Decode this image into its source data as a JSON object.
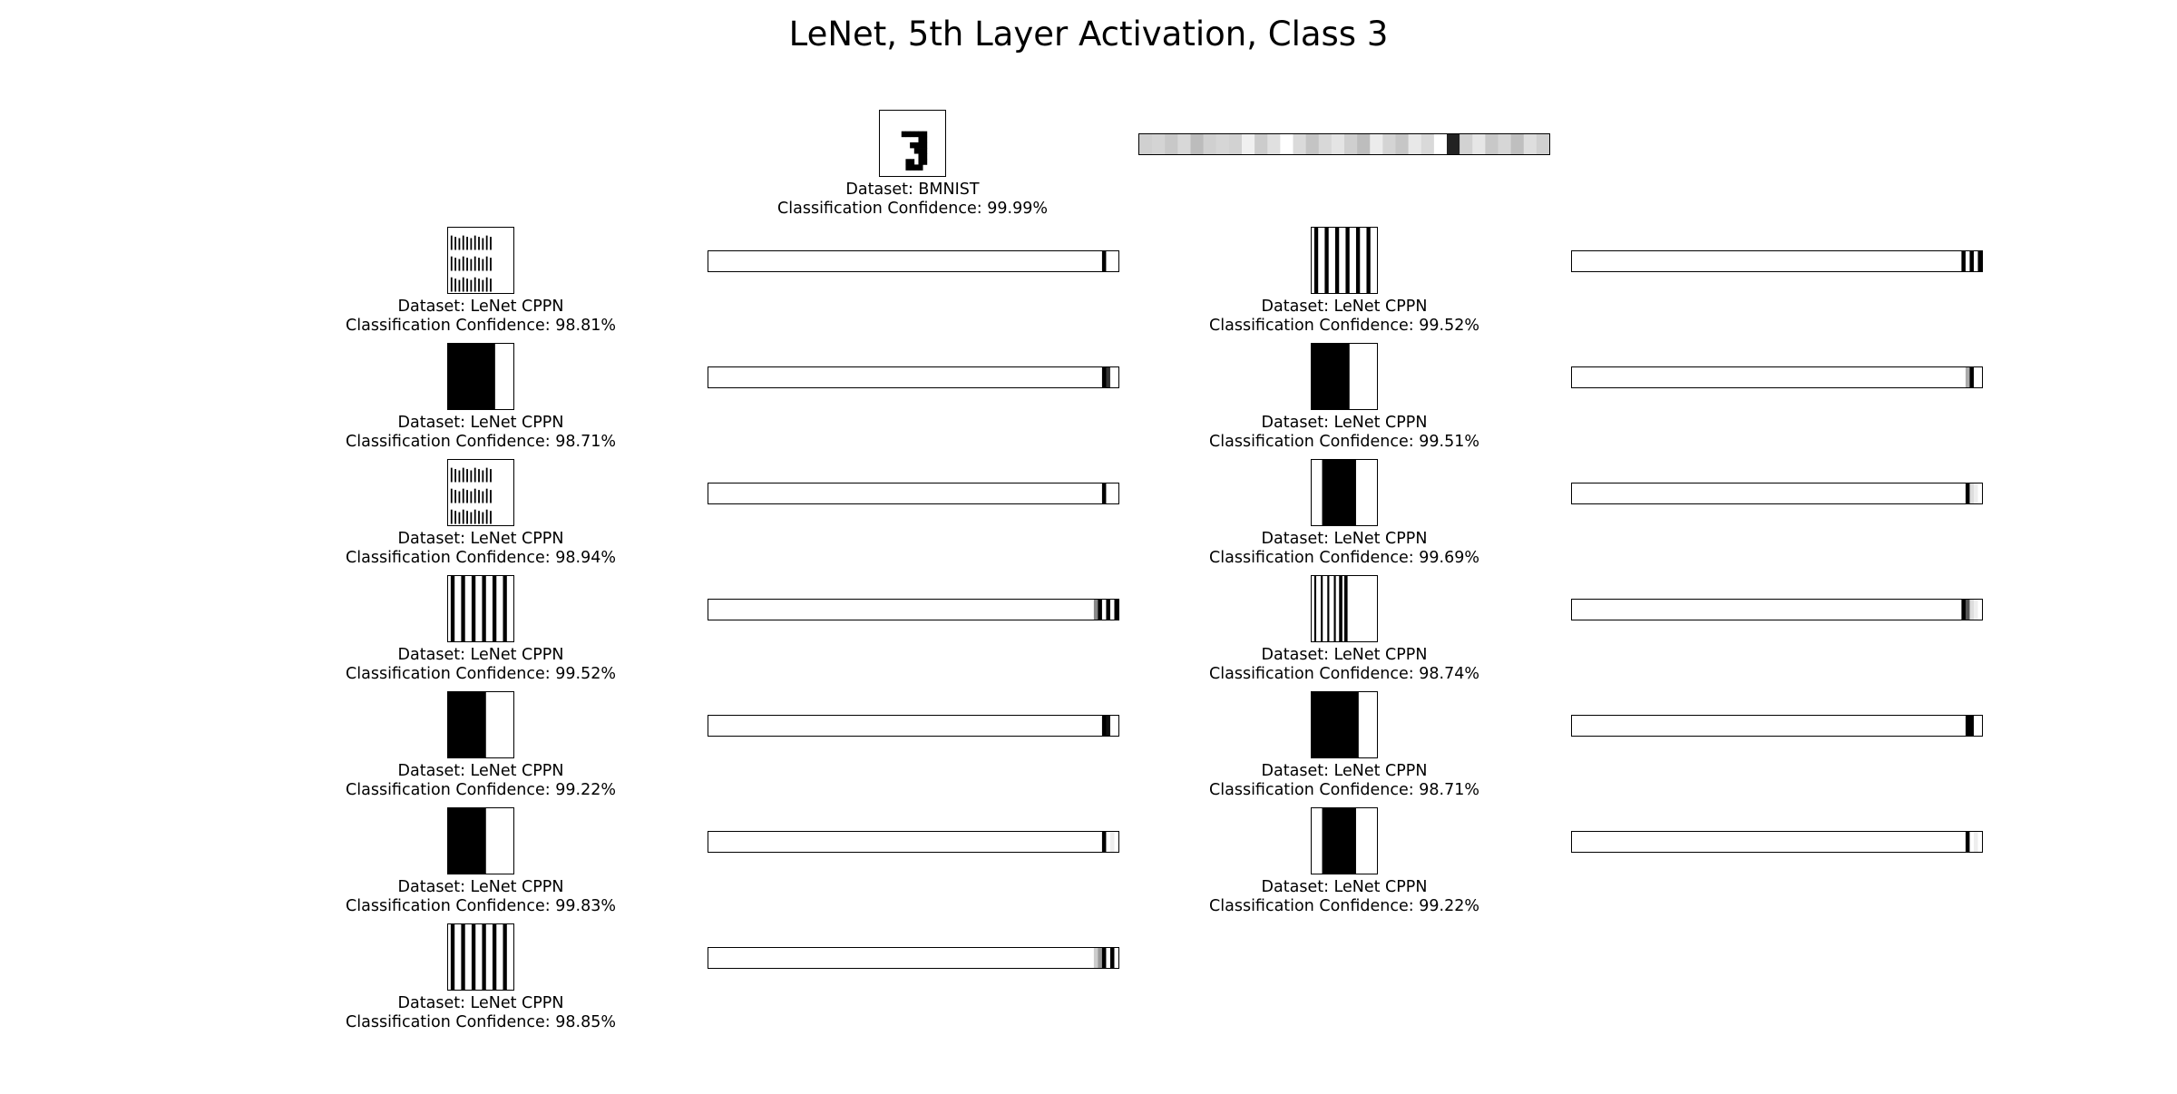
{
  "title": "LeNet, 5th Layer Activation, Class 3",
  "reference": {
    "dataset_label": "Dataset: BMNIST",
    "confidence_label": "Classification Confidence: 99.99%",
    "pattern": "digit-three",
    "activation": [
      "#d0d0d0",
      "#d4d4d4",
      "#c8c8c8",
      "#d8d8d8",
      "#bcbcbc",
      "#d0d0d0",
      "#d6d6d6",
      "#d2d2d2",
      "#f0f0f0",
      "#cccccc",
      "#e0e0e0",
      "#ffffff",
      "#dadada",
      "#c4c4c4",
      "#d8d8d8",
      "#e4e4e4",
      "#cfcfcf",
      "#bdbdbd",
      "#ececec",
      "#d4d4d4",
      "#c6c6c6",
      "#e8e8e8",
      "#d9d9d9",
      "#ffffff",
      "#222222",
      "#d2d2d2",
      "#e6e6e6",
      "#c8c8c8",
      "#d6d6d6",
      "#bfbfbf",
      "#dedede",
      "#d0d0d0"
    ]
  },
  "left_column": [
    {
      "dataset_label": "Dataset: LeNet CPPN",
      "confidence_label": "Classification Confidence: 98.81%",
      "pattern": "dashed-stripes",
      "activation_tail": [
        "#000000",
        "#ffffff",
        "#ffffff",
        "#ffffff"
      ]
    },
    {
      "dataset_label": "Dataset: LeNet CPPN",
      "confidence_label": "Classification Confidence: 98.71%",
      "pattern": "solid-block-wide",
      "activation_tail": [
        "#000000",
        "#333333",
        "#ffffff",
        "#ffffff"
      ]
    },
    {
      "dataset_label": "Dataset: LeNet CPPN",
      "confidence_label": "Classification Confidence: 98.94%",
      "pattern": "dashed-stripes",
      "activation_tail": [
        "#000000",
        "#ffffff",
        "#ffffff",
        "#ffffff"
      ]
    },
    {
      "dataset_label": "Dataset: LeNet CPPN",
      "confidence_label": "Classification Confidence: 99.52%",
      "pattern": "vertical-stripes",
      "activation_tail": [
        "#888888",
        "#000000",
        "#ffffff",
        "#000000",
        "#ffffff",
        "#000000"
      ]
    },
    {
      "dataset_label": "Dataset: LeNet CPPN",
      "confidence_label": "Classification Confidence: 99.22%",
      "pattern": "solid-block-mid",
      "activation_tail": [
        "#000000",
        "#111111",
        "#ffffff",
        "#ffffff"
      ]
    },
    {
      "dataset_label": "Dataset: LeNet CPPN",
      "confidence_label": "Classification Confidence: 99.83%",
      "pattern": "solid-block-mid",
      "activation_tail": [
        "#000000",
        "#ffffff",
        "#eeeeee",
        "#ffffff"
      ]
    },
    {
      "dataset_label": "Dataset: LeNet CPPN",
      "confidence_label": "Classification Confidence: 98.85%",
      "pattern": "vertical-stripes",
      "activation_tail": [
        "#cccccc",
        "#999999",
        "#000000",
        "#ffffff",
        "#000000",
        "#ffffff"
      ]
    }
  ],
  "right_column": [
    {
      "dataset_label": "Dataset: LeNet CPPN",
      "confidence_label": "Classification Confidence: 99.52%",
      "pattern": "vertical-stripes",
      "activation_tail": [
        "#000000",
        "#ffffff",
        "#000000",
        "#ffffff",
        "#000000"
      ]
    },
    {
      "dataset_label": "Dataset: LeNet CPPN",
      "confidence_label": "Classification Confidence: 99.51%",
      "pattern": "solid-block-mid",
      "activation_tail": [
        "#aaaaaa",
        "#000000",
        "#ffffff",
        "#ffffff"
      ]
    },
    {
      "dataset_label": "Dataset: LeNet CPPN",
      "confidence_label": "Classification Confidence: 99.69%",
      "pattern": "solid-block-center",
      "activation_tail": [
        "#000000",
        "#dddddd",
        "#eeeeee",
        "#ffffff"
      ]
    },
    {
      "dataset_label": "Dataset: LeNet CPPN",
      "confidence_label": "Classification Confidence: 98.74%",
      "pattern": "mixed-stripes",
      "activation_tail": [
        "#000000",
        "#555555",
        "#dddddd",
        "#eeeeee",
        "#ffffff"
      ]
    },
    {
      "dataset_label": "Dataset: LeNet CPPN",
      "confidence_label": "Classification Confidence: 98.71%",
      "pattern": "solid-block-large",
      "activation_tail": [
        "#000000",
        "#000000",
        "#ffffff",
        "#ffffff"
      ]
    },
    {
      "dataset_label": "Dataset: LeNet CPPN",
      "confidence_label": "Classification Confidence: 99.22%",
      "pattern": "solid-block-center",
      "activation_tail": [
        "#000000",
        "#ffffff",
        "#eeeeee",
        "#ffffff"
      ]
    }
  ]
}
